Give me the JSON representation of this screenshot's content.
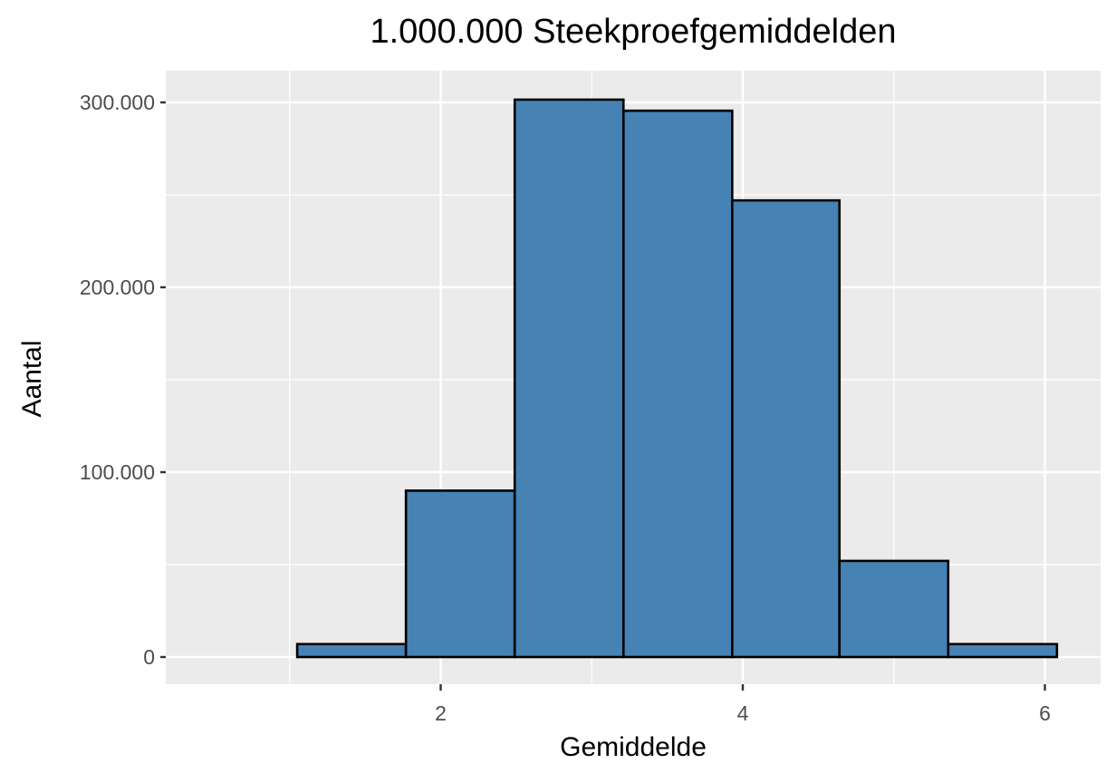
{
  "chart_data": {
    "type": "bar",
    "subtype": "histogram",
    "title": "1.000.000 Steekproefgemiddelden",
    "xlabel": "Gemiddelde",
    "ylabel": "Aantal",
    "bin_edges": [
      0.43,
      1.05,
      1.77,
      2.49,
      3.21,
      3.93,
      4.64,
      5.36,
      6.08
    ],
    "values": [
      0,
      7000,
      90000,
      301500,
      295500,
      247000,
      52000,
      7000
    ],
    "xlim": [
      0.2,
      6.35
    ],
    "ylim": [
      -15000,
      316000
    ],
    "x_ticks": [
      2,
      4,
      6
    ],
    "x_tick_labels": [
      "2",
      "4",
      "6"
    ],
    "x_minor_gridlines": [
      1,
      3,
      5
    ],
    "y_ticks": [
      0,
      100000,
      200000,
      300000
    ],
    "y_tick_labels": [
      "0",
      "100.000",
      "200.000",
      "300.000"
    ],
    "y_minor_gridlines": [
      50000,
      150000,
      250000
    ],
    "grid": true,
    "legend": null,
    "colors": {
      "bar_fill": "#4682B4",
      "bar_outline": "#000000",
      "panel_background": "#EBEBEB",
      "gridline": "#FFFFFF",
      "tick_label": "#4D4D4D"
    }
  }
}
